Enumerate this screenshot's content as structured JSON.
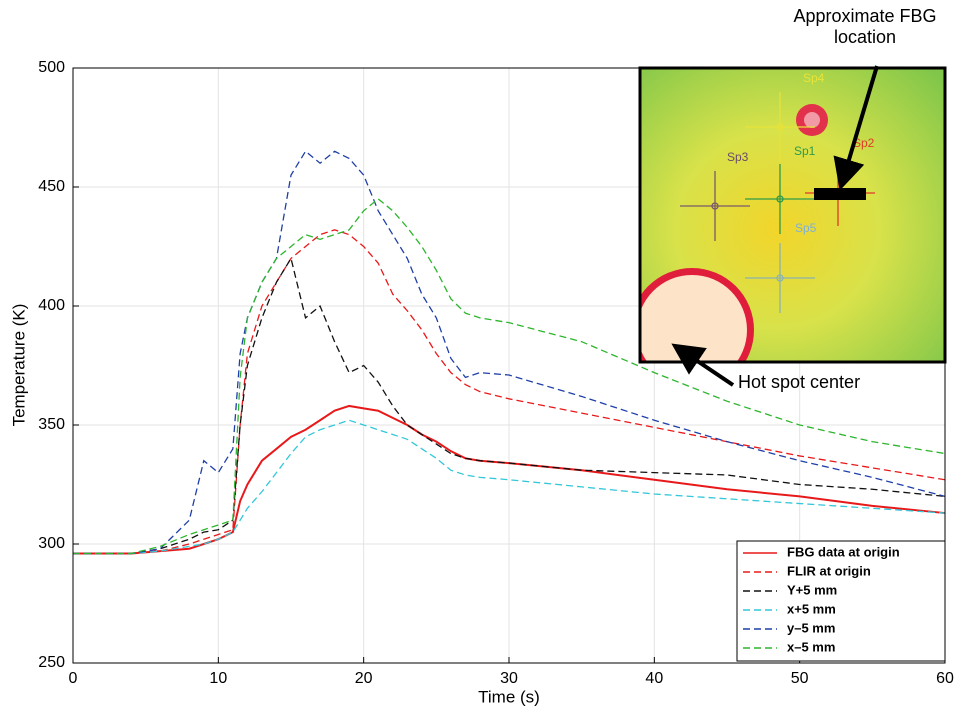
{
  "chart_data": {
    "type": "line",
    "x_label": "Time (s)",
    "y_label": "Temperature (K)",
    "x": [
      0,
      4,
      6,
      8,
      9,
      10,
      11,
      11.5,
      12,
      13,
      14,
      15,
      16,
      17,
      18,
      19,
      20,
      21,
      22,
      23,
      24,
      25,
      26,
      27,
      28,
      30,
      35,
      40,
      45,
      50,
      55,
      60
    ],
    "series": [
      {
        "name": "FBG data at origin",
        "color": "#e8191a",
        "line_style": "solid",
        "values": [
          296,
          296,
          297,
          298,
          300,
          302,
          305,
          318,
          325,
          335,
          340,
          345,
          348,
          352,
          356,
          358,
          357,
          356,
          353,
          350,
          346,
          343,
          339,
          336,
          335,
          334,
          331,
          327,
          323,
          320,
          316,
          313
        ]
      },
      {
        "name": "FLIR at origin",
        "color": "#e8191a",
        "line_style": "dashed",
        "values": [
          296,
          296,
          297,
          300,
          302,
          304,
          306,
          350,
          380,
          400,
          410,
          420,
          425,
          430,
          432,
          430,
          425,
          418,
          405,
          398,
          390,
          380,
          372,
          367,
          364,
          361,
          355,
          349,
          343,
          337,
          332,
          327
        ]
      },
      {
        "name": "Y+5 mm",
        "color": "#111111",
        "line_style": "dashed",
        "values": [
          296,
          296,
          298,
          302,
          305,
          306,
          310,
          350,
          375,
          395,
          410,
          420,
          395,
          400,
          385,
          372,
          375,
          368,
          358,
          350,
          346,
          342,
          338,
          336,
          335,
          334,
          331,
          330,
          329,
          325,
          323,
          320
        ]
      },
      {
        "name": "x+5 mm",
        "color": "#33c7d9",
        "line_style": "dashed",
        "values": [
          296,
          296,
          297,
          299,
          300,
          302,
          305,
          310,
          315,
          322,
          330,
          338,
          345,
          348,
          350,
          352,
          350,
          348,
          346,
          344,
          340,
          336,
          331,
          329,
          328,
          327,
          324,
          321,
          319,
          317,
          315,
          313
        ]
      },
      {
        "name": "y–5 mm",
        "color": "#1f3fa8",
        "line_style": "dashed",
        "values": [
          296,
          296,
          298,
          310,
          335,
          330,
          340,
          380,
          395,
          410,
          420,
          455,
          465,
          460,
          465,
          462,
          455,
          440,
          430,
          420,
          405,
          395,
          378,
          370,
          372,
          371,
          362,
          352,
          343,
          335,
          328,
          320
        ]
      },
      {
        "name": "x–5 mm",
        "color": "#2db52d",
        "line_style": "dashed",
        "values": [
          296,
          296,
          299,
          304,
          306,
          308,
          310,
          370,
          395,
          410,
          420,
          425,
          430,
          428,
          430,
          432,
          440,
          445,
          440,
          433,
          425,
          415,
          403,
          397,
          395,
          393,
          385,
          372,
          360,
          350,
          343,
          338
        ]
      }
    ],
    "xlim": [
      0,
      60
    ],
    "xticks": [
      0,
      10,
      20,
      30,
      40,
      50,
      60
    ],
    "ylim": [
      250,
      500
    ],
    "yticks": [
      250,
      300,
      350,
      400,
      450,
      500
    ],
    "grid": true,
    "legend": "lower right",
    "annotations": [
      "Approximate FBG location",
      "Hot spot center"
    ],
    "inset_labels": [
      "Sp1",
      "Sp2",
      "Sp3",
      "Sp4",
      "Sp5"
    ]
  }
}
